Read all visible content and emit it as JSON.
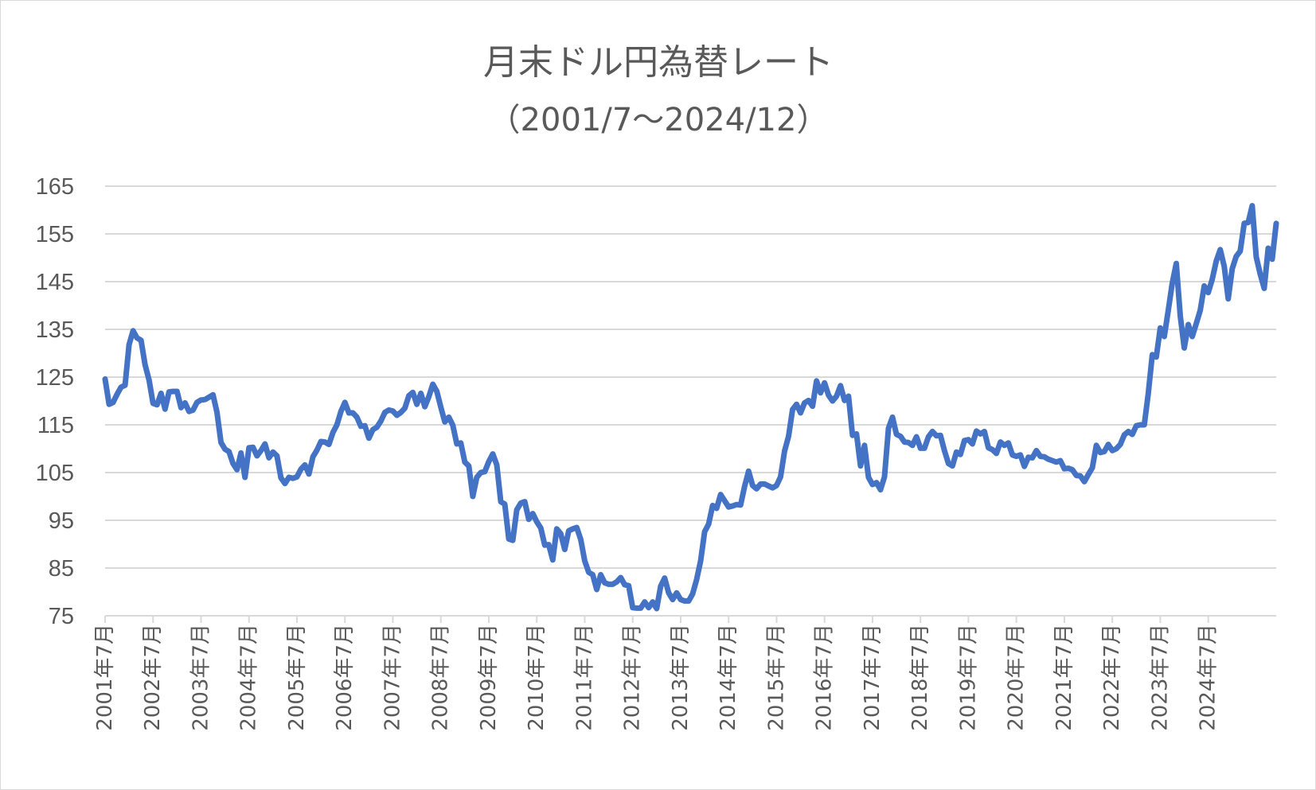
{
  "chart_data": {
    "type": "line",
    "title": "月末ドル円為替レート",
    "subtitle": "（2001/7～2024/12）",
    "xlabel": "",
    "ylabel": "",
    "ylim": [
      75,
      165
    ],
    "yticks": [
      "165",
      "155",
      "145",
      "135",
      "125",
      "115",
      "105",
      "95",
      "85",
      "75"
    ],
    "ytick_values": [
      165,
      155,
      145,
      135,
      125,
      115,
      105,
      95,
      85,
      75
    ],
    "xticks": [
      "2001年7月",
      "2002年7月",
      "2003年7月",
      "2004年7月",
      "2005年7月",
      "2006年7月",
      "2007年7月",
      "2008年7月",
      "2009年7月",
      "2010年7月",
      "2011年7月",
      "2012年7月",
      "2013年7月",
      "2014年7月",
      "2015年7月",
      "2016年7月",
      "2017年7月",
      "2018年7月",
      "2019年7月",
      "2020年7月",
      "2021年7月",
      "2022年7月",
      "2023年7月",
      "2024年7月"
    ],
    "x_start": "2001-07",
    "x_end": "2024-12",
    "grid": true,
    "legend": false,
    "line_color": "#4472c4",
    "values": [
      124.6,
      119.3,
      119.7,
      121.4,
      122.9,
      123.3,
      131.8,
      134.7,
      133.2,
      132.7,
      127.6,
      124.4,
      119.5,
      119.2,
      121.6,
      118.3,
      121.9,
      122.0,
      122.0,
      118.6,
      119.6,
      117.8,
      118.1,
      119.7,
      120.2,
      120.3,
      120.8,
      121.3,
      117.6,
      111.3,
      109.9,
      109.4,
      106.9,
      105.6,
      109.1,
      104.0,
      110.2,
      110.3,
      108.5,
      109.6,
      111.0,
      108.1,
      109.3,
      108.5,
      103.9,
      102.7,
      104.0,
      103.8,
      104.1,
      105.7,
      106.6,
      104.7,
      108.3,
      109.7,
      111.5,
      111.4,
      110.9,
      113.4,
      115.0,
      117.8,
      119.7,
      117.5,
      117.5,
      116.6,
      114.7,
      114.8,
      112.2,
      114.0,
      114.5,
      115.8,
      117.6,
      118.1,
      117.9,
      117.0,
      117.6,
      118.5,
      121.1,
      121.8,
      119.3,
      121.6,
      118.8,
      120.9,
      123.5,
      122.0,
      118.7,
      115.6,
      116.6,
      114.9,
      111.0,
      111.2,
      107.2,
      106.4,
      100.0,
      104.0,
      105.0,
      105.2,
      107.3,
      108.9,
      106.6,
      98.9,
      98.4,
      91.1,
      90.8,
      97.2,
      98.6,
      98.9,
      95.2,
      96.4,
      94.7,
      93.4,
      89.8,
      89.9,
      86.7,
      93.2,
      92.2,
      88.9,
      92.8,
      93.2,
      93.5,
      91.0,
      86.5,
      84.1,
      83.6,
      80.5,
      83.6,
      81.9,
      81.6,
      81.6,
      82.1,
      83.0,
      81.5,
      81.3,
      76.7,
      76.6,
      76.6,
      77.9,
      76.7,
      77.9,
      76.5,
      81.2,
      82.9,
      79.8,
      78.4,
      79.8,
      78.4,
      78.1,
      78.1,
      79.6,
      82.6,
      86.5,
      92.6,
      94.2,
      98.1,
      97.5,
      100.4,
      99.1,
      97.8,
      98.0,
      98.3,
      98.2,
      102.1,
      105.3,
      102.3,
      101.6,
      102.6,
      102.6,
      102.2,
      101.8,
      102.3,
      104.1,
      109.5,
      112.6,
      118.2,
      119.3,
      117.5,
      119.6,
      120.1,
      118.9,
      124.2,
      121.7,
      123.8,
      121.2,
      120.0,
      121.0,
      123.2,
      120.1,
      121.0,
      112.8,
      113.1,
      106.4,
      110.7,
      104.0,
      102.5,
      102.9,
      101.4,
      104.1,
      114.3,
      116.6,
      113.0,
      112.6,
      111.4,
      111.3,
      110.7,
      112.5,
      110.1,
      110.1,
      112.5,
      113.6,
      112.7,
      112.8,
      109.6,
      106.9,
      106.4,
      109.3,
      108.8,
      111.7,
      111.9,
      111.0,
      113.7,
      113.1,
      113.6,
      110.2,
      109.8,
      109.0,
      111.4,
      110.7,
      111.2,
      108.7,
      108.4,
      108.7,
      106.3,
      108.2,
      108.1,
      109.6,
      108.4,
      108.3,
      107.8,
      107.5,
      107.2,
      107.5,
      105.8,
      105.9,
      105.6,
      104.4,
      104.3,
      103.1,
      104.6,
      106.0,
      110.7,
      109.2,
      109.4,
      110.9,
      109.6,
      110.0,
      110.9,
      112.9,
      113.6,
      113.0,
      114.8,
      115.0,
      115.0,
      121.6,
      129.7,
      129.2,
      135.3,
      133.5,
      139.0,
      144.7,
      148.8,
      137.8,
      131.1,
      136.0,
      133.5,
      136.2,
      139.0,
      144.1,
      142.7,
      145.5,
      149.3,
      151.7,
      148.2,
      141.4,
      147.7,
      150.3,
      151.4,
      157.2,
      157.4,
      160.9,
      150.2,
      146.6,
      143.6,
      152.0,
      149.7,
      157.2
    ]
  }
}
